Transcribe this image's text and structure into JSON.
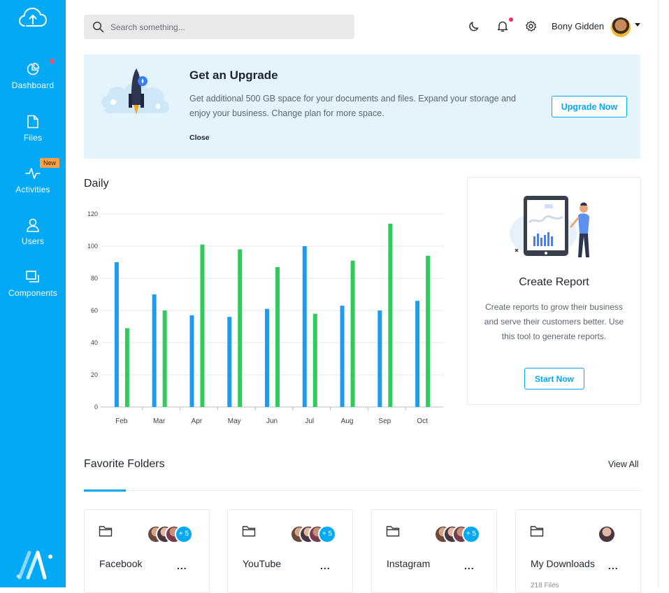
{
  "sidebar": {
    "items": [
      {
        "label": "Dashboard",
        "icon": "pie-chart-icon"
      },
      {
        "label": "Files",
        "icon": "file-icon"
      },
      {
        "label": "Activities",
        "icon": "activity-icon",
        "badge": "New"
      },
      {
        "label": "Users",
        "icon": "user-icon"
      },
      {
        "label": "Components",
        "icon": "components-icon"
      }
    ]
  },
  "header": {
    "search_placeholder": "Search something...",
    "user_name": "Bony Gidden"
  },
  "banner": {
    "title": "Get an Upgrade",
    "text": "Get additional 500 GB space for your documents and files. Expand your storage and enjoy your business. Change plan for more space.",
    "close_label": "Close",
    "button_label": "Upgrade Now"
  },
  "daily": {
    "title": "Daily"
  },
  "chart_data": {
    "type": "bar",
    "categories": [
      "Feb",
      "Mar",
      "Apr",
      "May",
      "Jun",
      "Jul",
      "Aug",
      "Sep",
      "Oct"
    ],
    "series": [
      {
        "values": [
          90,
          70,
          57,
          56,
          61,
          100,
          63,
          60,
          66
        ],
        "color": "#1e9bf0"
      },
      {
        "values": [
          49,
          60,
          101,
          98,
          87,
          58,
          91,
          114,
          94
        ],
        "color": "#2ecc5a"
      }
    ],
    "ylim": [
      0,
      120
    ],
    "yticks": [
      "0",
      "20",
      "40",
      "60",
      "80",
      "100",
      "120"
    ],
    "grid": true,
    "title": "",
    "xlabel": "",
    "ylabel": ""
  },
  "report": {
    "title": "Create Report",
    "text": "Create reports to grow their business and serve their customers better. Use this tool to generate reports.",
    "button_label": "Start Now"
  },
  "favorites": {
    "title": "Favorite Folders",
    "view_all": "View All",
    "folders": [
      {
        "name": "Facebook",
        "more": "+ 5",
        "count": ""
      },
      {
        "name": "YouTube",
        "more": "+ 5",
        "count": ""
      },
      {
        "name": "Instagram",
        "more": "+ 5",
        "count": ""
      },
      {
        "name": "My Downloads",
        "more": "",
        "count": "218 Files"
      }
    ],
    "menu_glyph": "..."
  },
  "colors": {
    "accent": "#03a9f4",
    "banner_bg": "#e3f4fd",
    "badge": "#ff9f43",
    "notify": "#ff2d55"
  }
}
